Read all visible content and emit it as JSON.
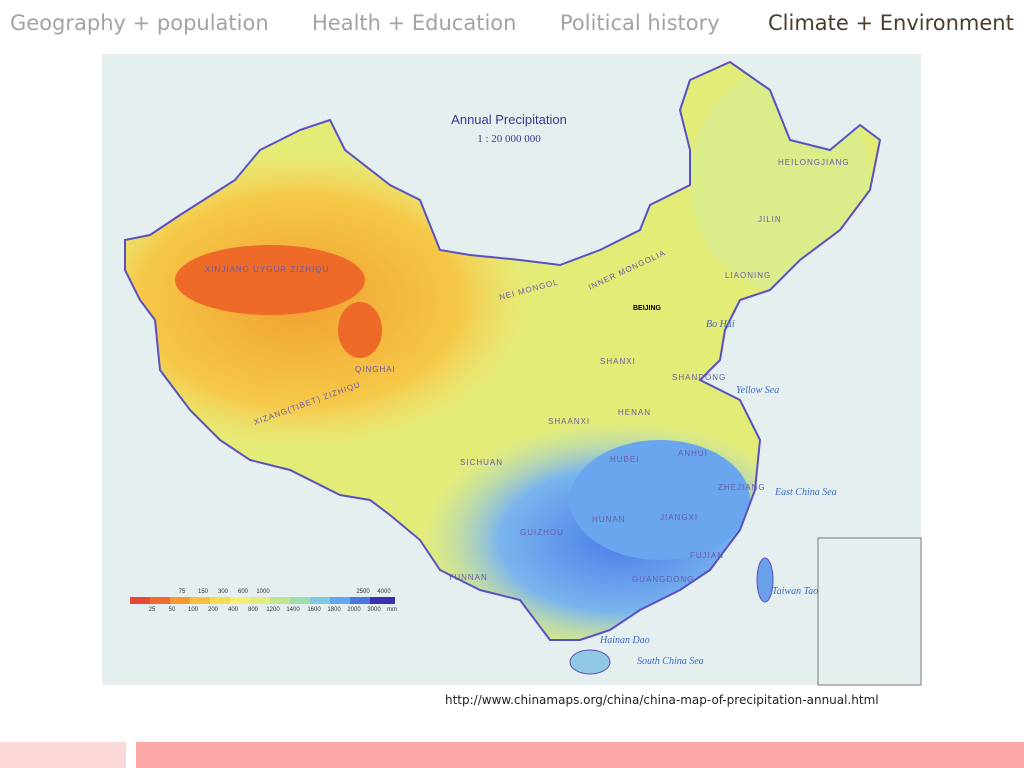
{
  "nav": {
    "tabs": [
      "Geography + population",
      "Health + Education",
      "Political history",
      "Climate + Environment"
    ]
  },
  "map": {
    "title": "Annual Precipitation",
    "scale": "1 : 20 000 000",
    "legend_top": [
      "75",
      "150",
      "300",
      "600",
      "1000",
      "2500",
      "4000"
    ],
    "legend_bottom": [
      "25",
      "50",
      "100",
      "200",
      "400",
      "800",
      "1200",
      "1400",
      "1600",
      "1800",
      "2000",
      "3000",
      "mm"
    ],
    "labels": [
      "XINJIANG UYGUR ZIZHIQU",
      "QINGHAI",
      "XIZANG(TIBET) ZIZHIQU",
      "NEI MONGOL",
      "INNER MONGOLIA",
      "HEILONGJIANG",
      "JILIN",
      "LIAONING",
      "BEIJING",
      "Bo Hai",
      "Yellow Sea",
      "East China Sea",
      "South China Sea",
      "SICHUAN",
      "YUNNAN",
      "GUIZHOU",
      "HUNAN",
      "HUBEI",
      "HENAN",
      "SHAANXI",
      "SHANXI",
      "SHANDONG",
      "ANHUI",
      "JIANGXI",
      "ZHEJIANG",
      "FUJIAN",
      "GUANGDONG",
      "Taiwan Tao",
      "Hainan Dao"
    ]
  },
  "caption": "http://www.chinamaps.org/china/china-map-of-precipitation-annual.html"
}
